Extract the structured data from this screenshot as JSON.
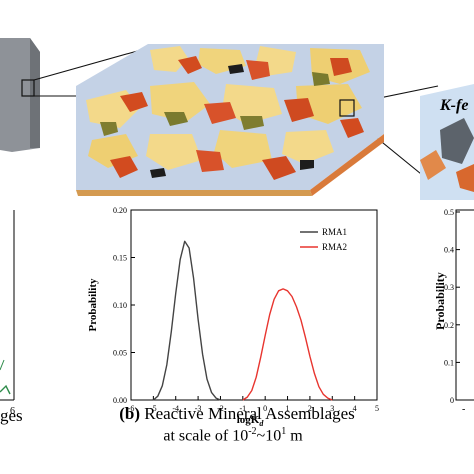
{
  "figure": {
    "callout_label": "K-fe",
    "left_caption_fragment": "ges",
    "left_axis_tick": "6",
    "right_axis_label": "Probability",
    "right_ticks": [
      "0.5",
      "0.4",
      "0.3",
      "0.2",
      "0.1",
      "0"
    ]
  },
  "caption": {
    "label": "(b)",
    "title": "Reactive Mineral Assemblages",
    "scale_prefix": "at scale of 10",
    "exp1": "-2",
    "tilde": "~10",
    "exp2": "1",
    "unit": " m"
  },
  "chart_data": {
    "type": "line",
    "xlabel": "logK_d",
    "xlabel_main": "logK",
    "xlabel_sub": "d",
    "ylabel": "Probability",
    "xlim": [
      -6,
      5
    ],
    "ylim": [
      0,
      0.2
    ],
    "xticks": [
      -6,
      -5,
      -4,
      -3,
      -2,
      -1,
      0,
      1,
      2,
      3,
      4,
      5
    ],
    "yticks": [
      0.0,
      0.05,
      0.1,
      0.15,
      0.2
    ],
    "ytick_labels": [
      "0.00",
      "0.05",
      "0.10",
      "0.15",
      "0.20"
    ],
    "legend_position": "top-right",
    "series": [
      {
        "name": "RMA1",
        "color": "#444444",
        "x": [
          -5.0,
          -4.8,
          -4.6,
          -4.4,
          -4.2,
          -4.0,
          -3.8,
          -3.6,
          -3.4,
          -3.2,
          -3.0,
          -2.8,
          -2.6,
          -2.4,
          -2.2,
          -2.0
        ],
        "y": [
          0.0,
          0.004,
          0.015,
          0.037,
          0.072,
          0.112,
          0.148,
          0.167,
          0.16,
          0.128,
          0.085,
          0.048,
          0.022,
          0.008,
          0.002,
          0.0
        ]
      },
      {
        "name": "RMA2",
        "color": "#e8352f",
        "x": [
          -1.0,
          -0.8,
          -0.6,
          -0.4,
          -0.2,
          0.0,
          0.2,
          0.4,
          0.6,
          0.8,
          1.0,
          1.2,
          1.4,
          1.6,
          1.8,
          2.0,
          2.2,
          2.4,
          2.6,
          2.8,
          3.0
        ],
        "y": [
          0.0,
          0.003,
          0.01,
          0.024,
          0.045,
          0.068,
          0.09,
          0.106,
          0.115,
          0.117,
          0.115,
          0.109,
          0.098,
          0.084,
          0.066,
          0.046,
          0.028,
          0.014,
          0.006,
          0.002,
          0.0
        ]
      }
    ]
  }
}
